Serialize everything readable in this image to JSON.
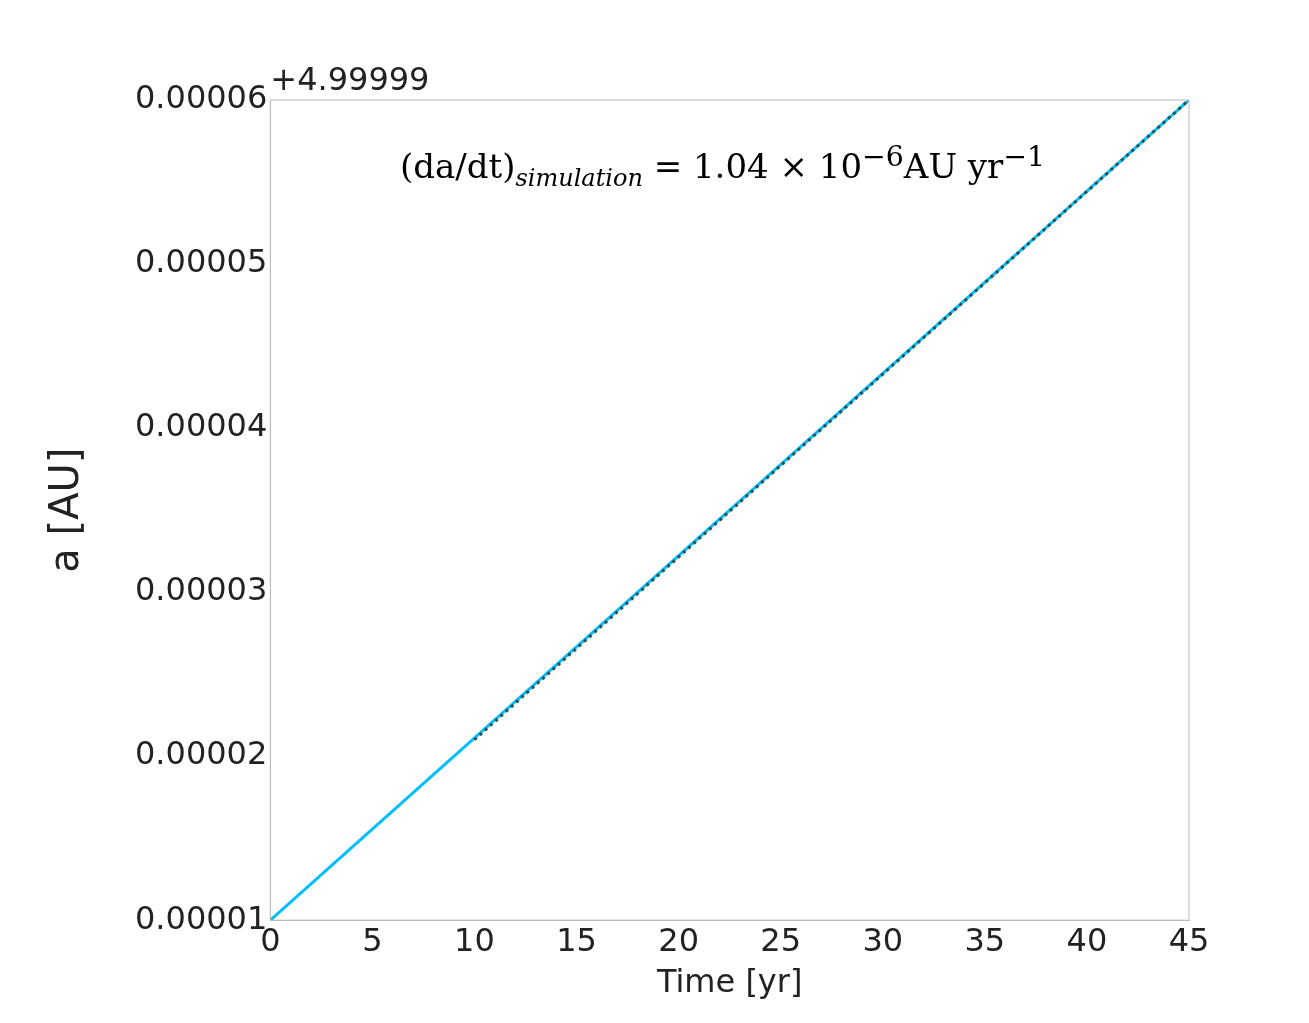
{
  "chart_data": {
    "type": "line",
    "xlabel": "Time [yr]",
    "ylabel": "a [AU]",
    "annotations": [
      "+4.99999",
      "(da/dt)$_{simulation}$ = 1.04 × 10$^{−6}$AU yr$^{−1}$"
    ],
    "series": [
      {
        "color": "#00bfff",
        "x": [
          0,
          45
        ],
        "values": [
          1e-05,
          6e-05
        ]
      },
      {
        "color": "#2f4f4f",
        "x": [
          10,
          45
        ],
        "values": [
          2.1e-05,
          6e-05
        ],
        "line_style": "dotted"
      }
    ],
    "xlim": [
      0,
      45
    ],
    "xticks": [
      0,
      5,
      10,
      15,
      20,
      25,
      30,
      35,
      40,
      45
    ],
    "ylim": [
      1e-05,
      6e-05
    ],
    "yticks": [
      {
        "value": 1e-05,
        "label": "0.00001"
      },
      {
        "value": 2e-05,
        "label": "0.00002"
      },
      {
        "value": 3e-05,
        "label": "0.00003"
      },
      {
        "value": 4e-05,
        "label": "0.00004"
      },
      {
        "value": 5e-05,
        "label": "0.00005"
      },
      {
        "value": 6e-05,
        "label": "0.00006"
      }
    ],
    "marker": "none",
    "line_style": "solid"
  }
}
